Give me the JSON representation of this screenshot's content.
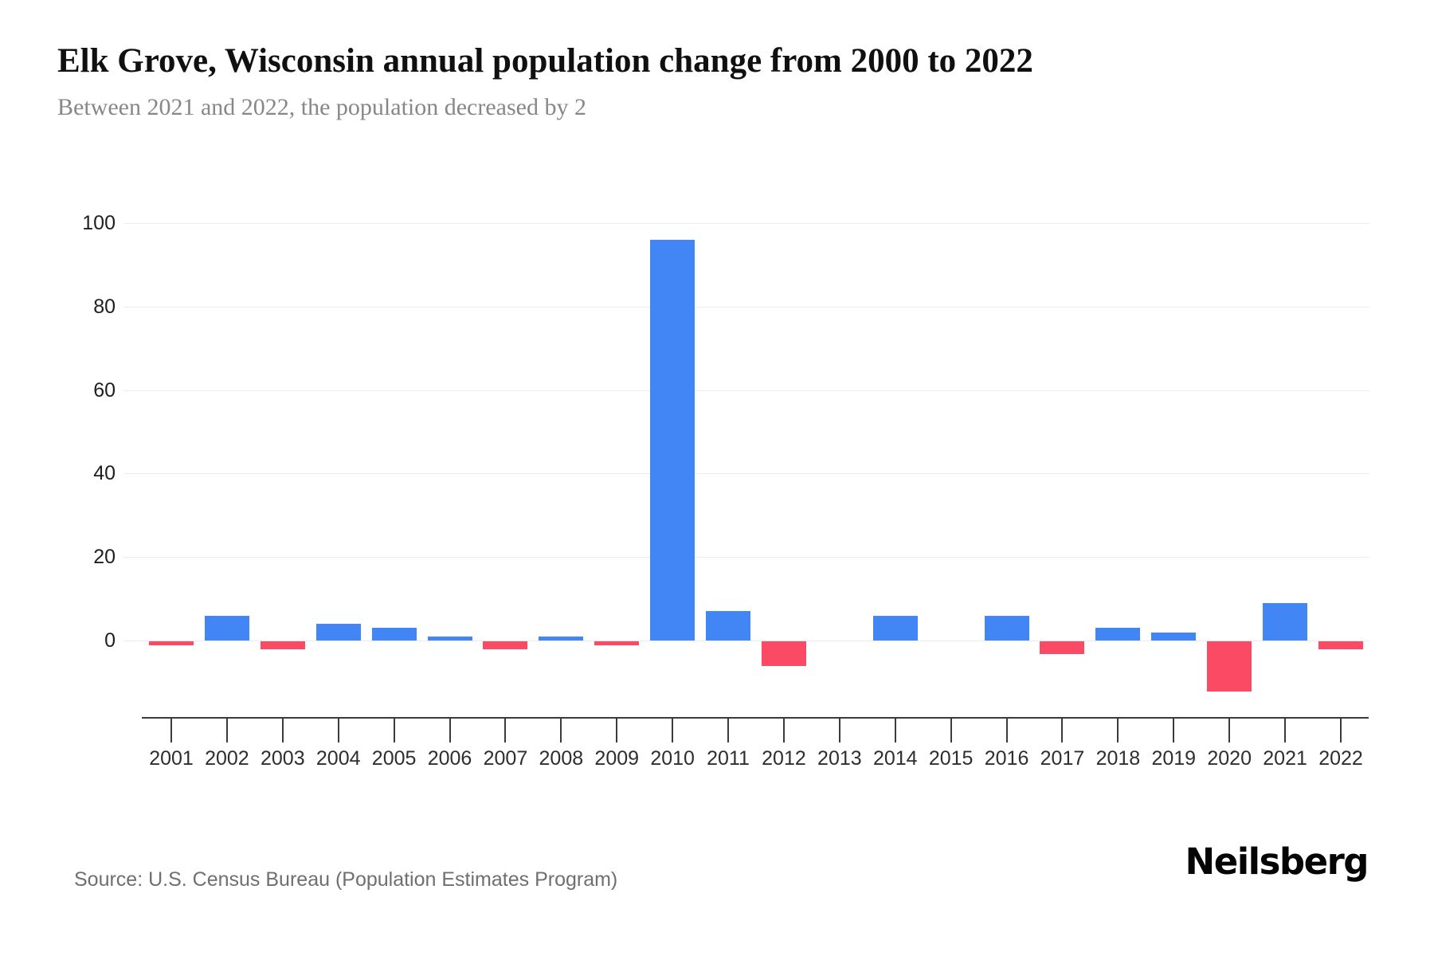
{
  "header": {
    "title": "Elk Grove, Wisconsin annual population change from 2000 to 2022",
    "subtitle": "Between 2021 and 2022, the population decreased by 2"
  },
  "chart_data": {
    "type": "bar",
    "title": "Elk Grove, Wisconsin annual population change from 2000 to 2022",
    "xlabel": "",
    "ylabel": "",
    "categories": [
      "2001",
      "2002",
      "2003",
      "2004",
      "2005",
      "2006",
      "2007",
      "2008",
      "2009",
      "2010",
      "2011",
      "2012",
      "2013",
      "2014",
      "2015",
      "2016",
      "2017",
      "2018",
      "2019",
      "2020",
      "2021",
      "2022"
    ],
    "values": [
      -1,
      6,
      -2,
      4,
      3,
      1,
      -2,
      1,
      -1,
      96,
      7,
      -6,
      0,
      6,
      0,
      6,
      -3,
      3,
      2,
      -12,
      9,
      -2
    ],
    "yticks": [
      0,
      20,
      40,
      60,
      80,
      100
    ],
    "ylim": [
      -18,
      110
    ],
    "grid": "horizontal",
    "legend": "none",
    "colors": {
      "positive": "#4285f4",
      "negative": "#fa4a64"
    }
  },
  "footer": {
    "source": "Source: U.S. Census Bureau (Population Estimates Program)",
    "brand": "Neilsberg"
  }
}
